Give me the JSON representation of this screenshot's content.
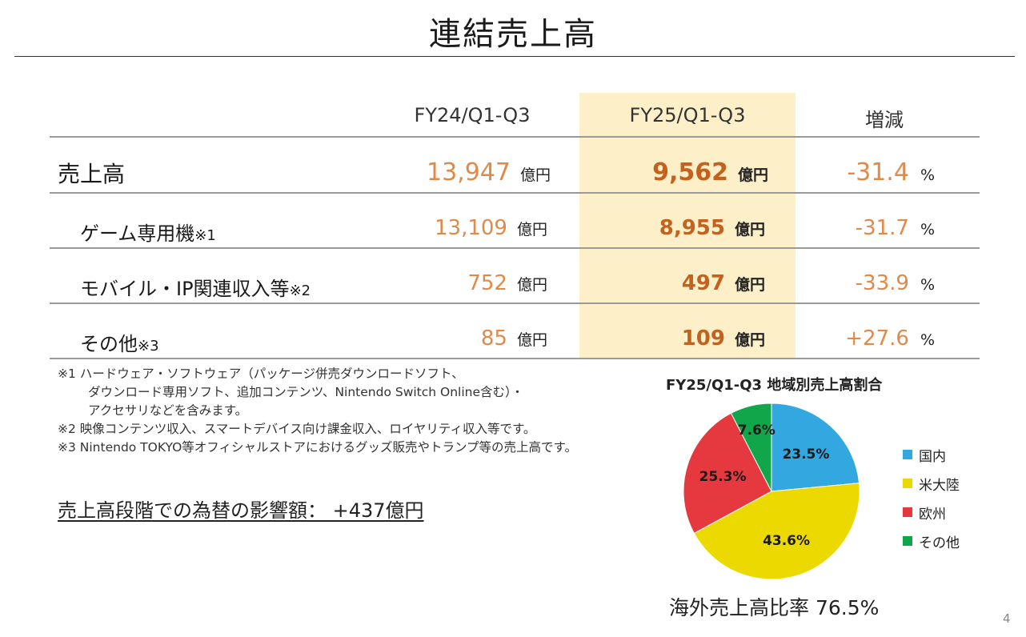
{
  "title": "連結売上高",
  "columns": {
    "fy24": "FY24/Q1-Q3",
    "fy25": "FY25/Q1-Q3",
    "change": "増減"
  },
  "rows": [
    {
      "label": "売上高",
      "note": "",
      "fy24": "13,947",
      "fy24_unit": "億円",
      "fy25": "9,562",
      "fy25_unit": "億円",
      "change": "-31.4",
      "change_unit": "%"
    },
    {
      "label": "ゲーム専用機",
      "note": "※1",
      "fy24": "13,109",
      "fy24_unit": "億円",
      "fy25": "8,955",
      "fy25_unit": "億円",
      "change": "-31.7",
      "change_unit": "%"
    },
    {
      "label": "モバイル・IP関連収入等",
      "note": "※2",
      "fy24": "752",
      "fy24_unit": "億円",
      "fy25": "497",
      "fy25_unit": "億円",
      "change": "-33.9",
      "change_unit": "%"
    },
    {
      "label": "その他",
      "note": "※3",
      "fy24": "85",
      "fy24_unit": "億円",
      "fy25": "109",
      "fy25_unit": "億円",
      "change": "+27.6",
      "change_unit": "%"
    }
  ],
  "footnotes": [
    "※1 ハードウェア・ソフトウェア（パッケージ併売ダウンロードソフト、",
    "ダウンロード専用ソフト、追加コンテンツ、Nintendo Switch Online含む）・",
    "アクセサリなどを含みます。",
    "※2 映像コンテンツ収入、スマートデバイス向け課金収入、ロイヤリティ収入等です。",
    "※3 Nintendo TOKYO等オフィシャルストアにおけるグッズ販売やトランプ等の売上高です。"
  ],
  "fx_impact": "売上高段階での為替の影響額： +437億円",
  "chart_data": {
    "type": "pie",
    "title": "FY25/Q1-Q3 地域別売上高割合",
    "slices": [
      {
        "name": "国内",
        "value": 23.5,
        "label": "23.5%",
        "color": "#33a7e0"
      },
      {
        "name": "米大陸",
        "value": 43.6,
        "label": "43.6%",
        "color": "#ecd900"
      },
      {
        "name": "欧州",
        "value": 25.3,
        "label": "25.3%",
        "color": "#e5393f"
      },
      {
        "name": "その他",
        "value": 7.6,
        "label": "7.6%",
        "color": "#12a64a"
      }
    ],
    "legend_position": "right"
  },
  "overseas_ratio": "海外売上高比率 76.5%",
  "page_number": "4"
}
